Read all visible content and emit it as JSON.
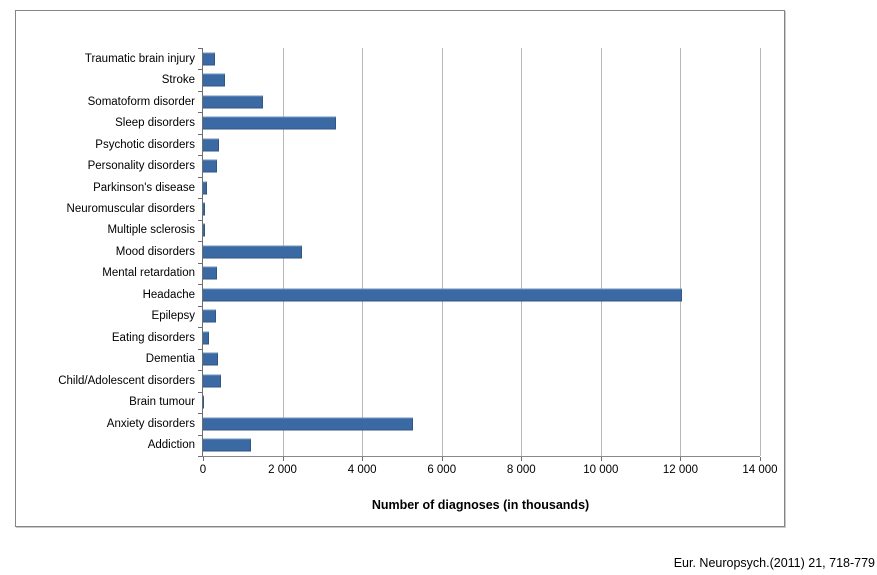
{
  "chart_data": {
    "type": "bar",
    "orientation": "horizontal",
    "title": "",
    "xlabel": "Number of diagnoses (in thousands)",
    "ylabel": "",
    "categories": [
      "Traumatic brain injury",
      "Stroke",
      "Somatoform disorder",
      "Sleep disorders",
      "Psychotic disorders",
      "Personality disorders",
      "Parkinson's disease",
      "Neuromuscular disorders",
      "Multiple sclerosis",
      "Mood disorders",
      "Mental retardation",
      "Headache",
      "Epilepsy",
      "Eating disorders",
      "Dementia",
      "Child/Adolescent disorders",
      "Brain tumour",
      "Anxiety disorders",
      "Addiction"
    ],
    "values": [
      300,
      550,
      1500,
      3350,
      390,
      360,
      100,
      40,
      60,
      2500,
      350,
      12050,
      320,
      150,
      380,
      450,
      30,
      5290,
      1210
    ],
    "xlim": [
      0,
      14000
    ],
    "x_ticks": [
      0,
      2000,
      4000,
      6000,
      8000,
      10000,
      12000,
      14000
    ],
    "x_tick_labels": [
      "0",
      "2 000",
      "4 000",
      "6 000",
      "8 000",
      "10 000",
      "12 000",
      "14 000"
    ],
    "grid": "vertical",
    "legend": "none",
    "bar_color": "#3a69a3",
    "gridline_color": "#b8b8b8",
    "axis_color": "#6e6e6e"
  },
  "citation": "Eur. Neuropsych.(2011) 21, 718-779"
}
